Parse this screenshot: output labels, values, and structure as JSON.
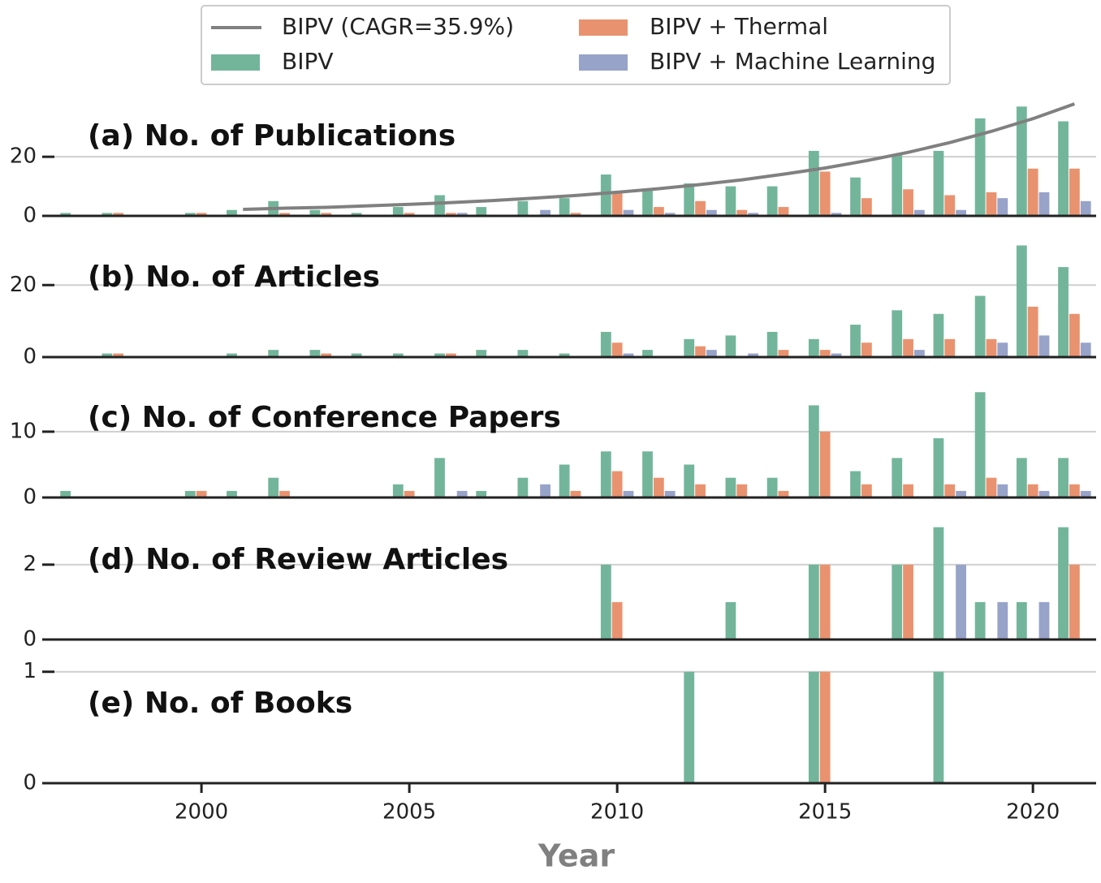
{
  "chart_data": [
    {
      "type": "bar",
      "title": "(a) No. of Publications",
      "x": [
        1997,
        1998,
        1999,
        2000,
        2001,
        2002,
        2003,
        2004,
        2005,
        2006,
        2007,
        2008,
        2009,
        2010,
        2011,
        2012,
        2013,
        2014,
        2015,
        2016,
        2017,
        2018,
        2019,
        2020,
        2021
      ],
      "series": [
        {
          "name": "BIPV (CAGR=35.9%)",
          "type": "line",
          "color": "#808080",
          "x": [
            2001,
            2002,
            2003,
            2004,
            2005,
            2006,
            2007,
            2008,
            2009,
            2010,
            2011,
            2012,
            2013,
            2014,
            2015,
            2016,
            2017,
            2018,
            2019,
            2020,
            2021
          ],
          "values": [
            2.2,
            2.6,
            2.9,
            3.4,
            3.9,
            4.5,
            5.2,
            6.0,
            6.9,
            8.0,
            9.2,
            10.6,
            12.2,
            14.1,
            16.2,
            18.7,
            21.5,
            24.8,
            28.6,
            32.9,
            37.9
          ]
        },
        {
          "name": "BIPV",
          "color": "#73b59b",
          "values": [
            1,
            1,
            0,
            1,
            2,
            5,
            2,
            1,
            3,
            7,
            3,
            5,
            6,
            14,
            9,
            11,
            10,
            10,
            22,
            13,
            21,
            22,
            33,
            37,
            32
          ]
        },
        {
          "name": "BIPV + Thermal",
          "color": "#e9926f",
          "values": [
            0,
            1,
            0,
            1,
            0,
            1,
            1,
            0,
            1,
            1,
            0,
            0,
            1,
            8,
            3,
            5,
            2,
            3,
            15,
            6,
            9,
            7,
            8,
            16,
            16
          ]
        },
        {
          "name": "BIPV + Machine Learning",
          "color": "#97a3c8",
          "values": [
            0,
            0,
            0,
            0,
            0,
            0,
            0,
            0,
            0,
            1,
            0,
            2,
            0,
            2,
            1,
            2,
            1,
            0,
            1,
            0,
            2,
            2,
            6,
            8,
            5
          ]
        }
      ],
      "ylim": [
        0,
        39
      ],
      "yticks": [
        0,
        20
      ],
      "grid": true
    },
    {
      "type": "bar",
      "title": "(b) No. of Articles",
      "x": [
        1997,
        1998,
        1999,
        2000,
        2001,
        2002,
        2003,
        2004,
        2005,
        2006,
        2007,
        2008,
        2009,
        2010,
        2011,
        2012,
        2013,
        2014,
        2015,
        2016,
        2017,
        2018,
        2019,
        2020,
        2021
      ],
      "series": [
        {
          "color": "#73b59b",
          "values": [
            0,
            1,
            0,
            0,
            1,
            2,
            2,
            1,
            1,
            1,
            2,
            2,
            1,
            7,
            2,
            5,
            6,
            7,
            5,
            9,
            13,
            12,
            17,
            31,
            25
          ]
        },
        {
          "color": "#e9926f",
          "values": [
            0,
            1,
            0,
            0,
            0,
            0,
            1,
            0,
            0,
            1,
            0,
            0,
            0,
            4,
            0,
            3,
            0,
            2,
            2,
            4,
            5,
            5,
            5,
            14,
            12
          ]
        },
        {
          "color": "#97a3c8",
          "values": [
            0,
            0,
            0,
            0,
            0,
            0,
            0,
            0,
            0,
            0,
            0,
            0,
            0,
            1,
            0,
            2,
            1,
            0,
            1,
            0,
            2,
            0,
            4,
            6,
            4
          ]
        }
      ],
      "ylim": [
        0,
        32
      ],
      "yticks": [
        0,
        20
      ],
      "grid": true
    },
    {
      "type": "bar",
      "title": "(c) No. of Conference Papers",
      "x": [
        1997,
        1998,
        1999,
        2000,
        2001,
        2002,
        2003,
        2004,
        2005,
        2006,
        2007,
        2008,
        2009,
        2010,
        2011,
        2012,
        2013,
        2014,
        2015,
        2016,
        2017,
        2018,
        2019,
        2020,
        2021
      ],
      "series": [
        {
          "color": "#73b59b",
          "values": [
            1,
            0,
            0,
            1,
            1,
            3,
            0,
            0,
            2,
            6,
            1,
            3,
            5,
            7,
            7,
            5,
            3,
            3,
            14,
            4,
            6,
            9,
            16,
            6,
            6
          ]
        },
        {
          "color": "#e9926f",
          "values": [
            0,
            0,
            0,
            1,
            0,
            1,
            0,
            0,
            1,
            0,
            0,
            0,
            1,
            4,
            3,
            2,
            2,
            1,
            10,
            2,
            2,
            2,
            3,
            2,
            2
          ]
        },
        {
          "color": "#97a3c8",
          "values": [
            0,
            0,
            0,
            0,
            0,
            0,
            0,
            0,
            0,
            1,
            0,
            2,
            0,
            1,
            1,
            0,
            0,
            0,
            0,
            0,
            0,
            1,
            2,
            1,
            1
          ]
        }
      ],
      "ylim": [
        0,
        18
      ],
      "yticks": [
        0,
        10
      ],
      "grid": true
    },
    {
      "type": "bar",
      "title": "(d) No. of Review Articles",
      "x": [
        1997,
        1998,
        1999,
        2000,
        2001,
        2002,
        2003,
        2004,
        2005,
        2006,
        2007,
        2008,
        2009,
        2010,
        2011,
        2012,
        2013,
        2014,
        2015,
        2016,
        2017,
        2018,
        2019,
        2020,
        2021
      ],
      "series": [
        {
          "color": "#73b59b",
          "values": [
            0,
            0,
            0,
            0,
            0,
            0,
            0,
            0,
            0,
            0,
            0,
            0,
            0,
            2,
            0,
            0,
            1,
            0,
            2,
            0,
            2,
            3,
            1,
            1,
            3
          ]
        },
        {
          "color": "#e9926f",
          "values": [
            0,
            0,
            0,
            0,
            0,
            0,
            0,
            0,
            0,
            0,
            0,
            0,
            0,
            1,
            0,
            0,
            0,
            0,
            2,
            0,
            2,
            0,
            0,
            0,
            2
          ]
        },
        {
          "color": "#97a3c8",
          "values": [
            0,
            0,
            0,
            0,
            0,
            0,
            0,
            0,
            0,
            0,
            0,
            0,
            0,
            0,
            0,
            0,
            0,
            0,
            0,
            0,
            0,
            2,
            1,
            1,
            0
          ]
        }
      ],
      "ylim": [
        0,
        3.1
      ],
      "yticks": [
        0,
        2
      ],
      "grid": true
    },
    {
      "type": "bar",
      "title": "(e) No. of Books",
      "x": [
        1997,
        1998,
        1999,
        2000,
        2001,
        2002,
        2003,
        2004,
        2005,
        2006,
        2007,
        2008,
        2009,
        2010,
        2011,
        2012,
        2013,
        2014,
        2015,
        2016,
        2017,
        2018,
        2019,
        2020,
        2021
      ],
      "series": [
        {
          "color": "#73b59b",
          "values": [
            0,
            0,
            0,
            0,
            0,
            0,
            0,
            0,
            0,
            0,
            0,
            0,
            0,
            0,
            0,
            1,
            0,
            0,
            1,
            0,
            0,
            1,
            0,
            0,
            0
          ]
        },
        {
          "color": "#e9926f",
          "values": [
            0,
            0,
            0,
            0,
            0,
            0,
            0,
            0,
            0,
            0,
            0,
            0,
            0,
            0,
            0,
            0,
            0,
            0,
            1,
            0,
            0,
            0,
            0,
            0,
            0
          ]
        },
        {
          "color": "#97a3c8",
          "values": [
            0,
            0,
            0,
            0,
            0,
            0,
            0,
            0,
            0,
            0,
            0,
            0,
            0,
            0,
            0,
            0,
            0,
            0,
            0,
            0,
            0,
            0,
            0,
            0,
            0
          ]
        }
      ],
      "ylim": [
        0,
        1.1
      ],
      "yticks": [
        0,
        1
      ],
      "grid": true,
      "xlabel": "Year",
      "xlim": [
        1996.17,
        2021.52
      ],
      "xticks": [
        2000,
        2005,
        2010,
        2015,
        2020
      ]
    }
  ]
}
